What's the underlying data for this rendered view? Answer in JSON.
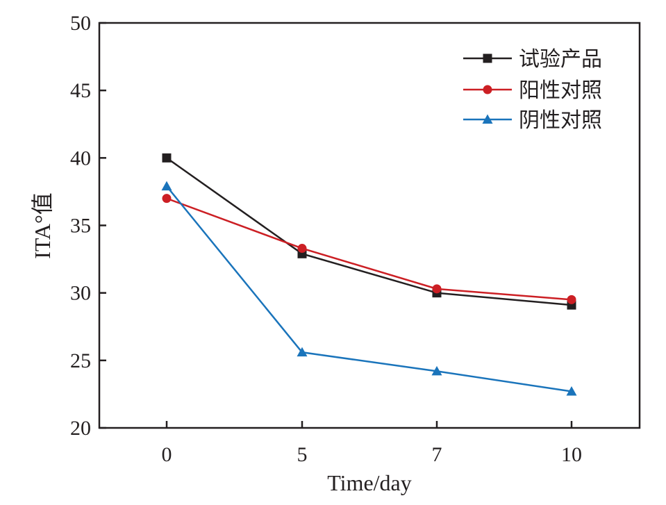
{
  "chart_data": {
    "type": "line",
    "title": "",
    "xlabel": "Time/day",
    "ylabel": "ITA°值",
    "categories": [
      "0",
      "5",
      "7",
      "10"
    ],
    "ylim": [
      20,
      50
    ],
    "yticks": [
      "20",
      "25",
      "30",
      "35",
      "40",
      "45",
      "50"
    ],
    "grid": false,
    "legend_position": "top-right",
    "series": [
      {
        "name": "试验产品",
        "values": [
          40.0,
          32.9,
          30.0,
          29.1
        ],
        "color": "#231f20",
        "marker": "square"
      },
      {
        "name": "阳性对照",
        "values": [
          37.0,
          33.3,
          30.3,
          29.5
        ],
        "color": "#cc1f24",
        "marker": "circle"
      },
      {
        "name": "阴性对照",
        "values": [
          37.9,
          25.6,
          24.2,
          22.7
        ],
        "color": "#1a74bb",
        "marker": "triangle"
      }
    ]
  }
}
